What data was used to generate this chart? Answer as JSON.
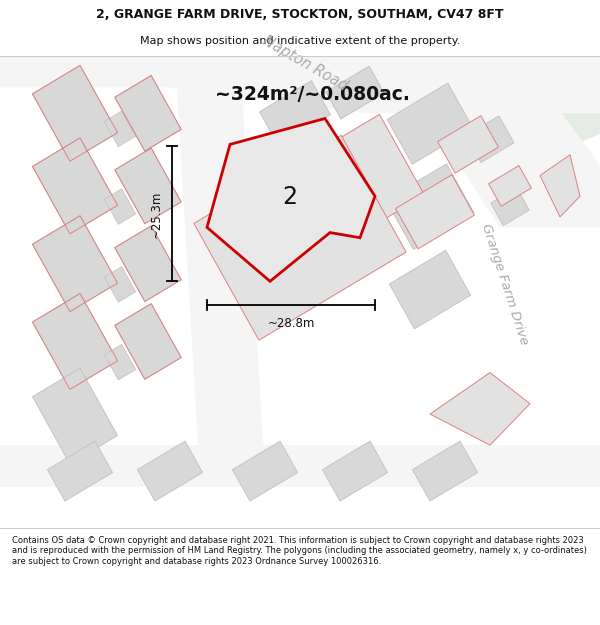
{
  "title_line1": "2, GRANGE FARM DRIVE, STOCKTON, SOUTHAM, CV47 8FT",
  "title_line2": "Map shows position and indicative extent of the property.",
  "area_text": "~324m²/~0.080ac.",
  "label_number": "2",
  "dim_vertical": "~25.3m",
  "dim_horizontal": "~28.8m",
  "road_label1": "Napton Road",
  "road_label2": "Grange Farm Drive",
  "footer_text": "Contains OS data © Crown copyright and database right 2021. This information is subject to Crown copyright and database rights 2023 and is reproduced with the permission of HM Land Registry. The polygons (including the associated geometry, namely x, y co-ordinates) are subject to Crown copyright and database rights 2023 Ordnance Survey 100026316.",
  "map_bg": "#ebebeb",
  "road_white": "#f5f5f5",
  "block_fill": "#d8d8d8",
  "block_edge": "#c0c0c0",
  "plot_fill": "#e2e2e2",
  "pink_edge": "#e08080",
  "red_color": "#cc0000",
  "green_corner": "#e4ebe4",
  "dark_text": "#111111",
  "gray_road_text": "#aaaaaa",
  "title_bg": "#ffffff",
  "footer_bg": "#ffffff",
  "sep_line": "#cccccc"
}
